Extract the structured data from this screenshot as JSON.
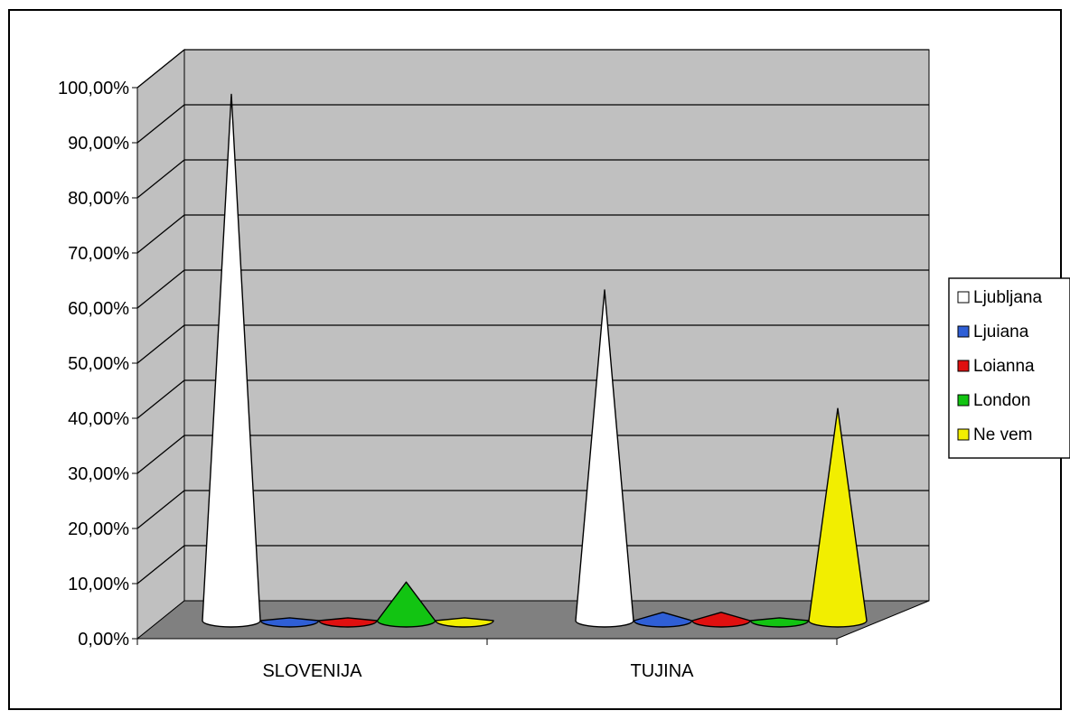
{
  "chart_data": {
    "type": "bar",
    "style": "3d-cone",
    "categories": [
      "SLOVENIJA",
      "TUJINA"
    ],
    "series": [
      {
        "name": "Ljubljana",
        "values": [
          95.5,
          60.0
        ],
        "color": "#ffffff"
      },
      {
        "name": "Ljuiana",
        "values": [
          0.5,
          1.5
        ],
        "color": "#2f5fd6"
      },
      {
        "name": "Loianna",
        "values": [
          0.5,
          1.5
        ],
        "color": "#e01010"
      },
      {
        "name": "London",
        "values": [
          7.0,
          0.5
        ],
        "color": "#12c412"
      },
      {
        "name": "Ne vem",
        "values": [
          0.5,
          38.5
        ],
        "color": "#f2ee00"
      }
    ],
    "y_ticks": [
      "0,00%",
      "10,00%",
      "20,00%",
      "30,00%",
      "40,00%",
      "50,00%",
      "60,00%",
      "70,00%",
      "80,00%",
      "90,00%",
      "100,00%"
    ],
    "ylim": [
      0,
      100
    ],
    "grid": true,
    "legend": "right",
    "wall_color": "#c0c0c0",
    "floor_color": "#808080"
  }
}
